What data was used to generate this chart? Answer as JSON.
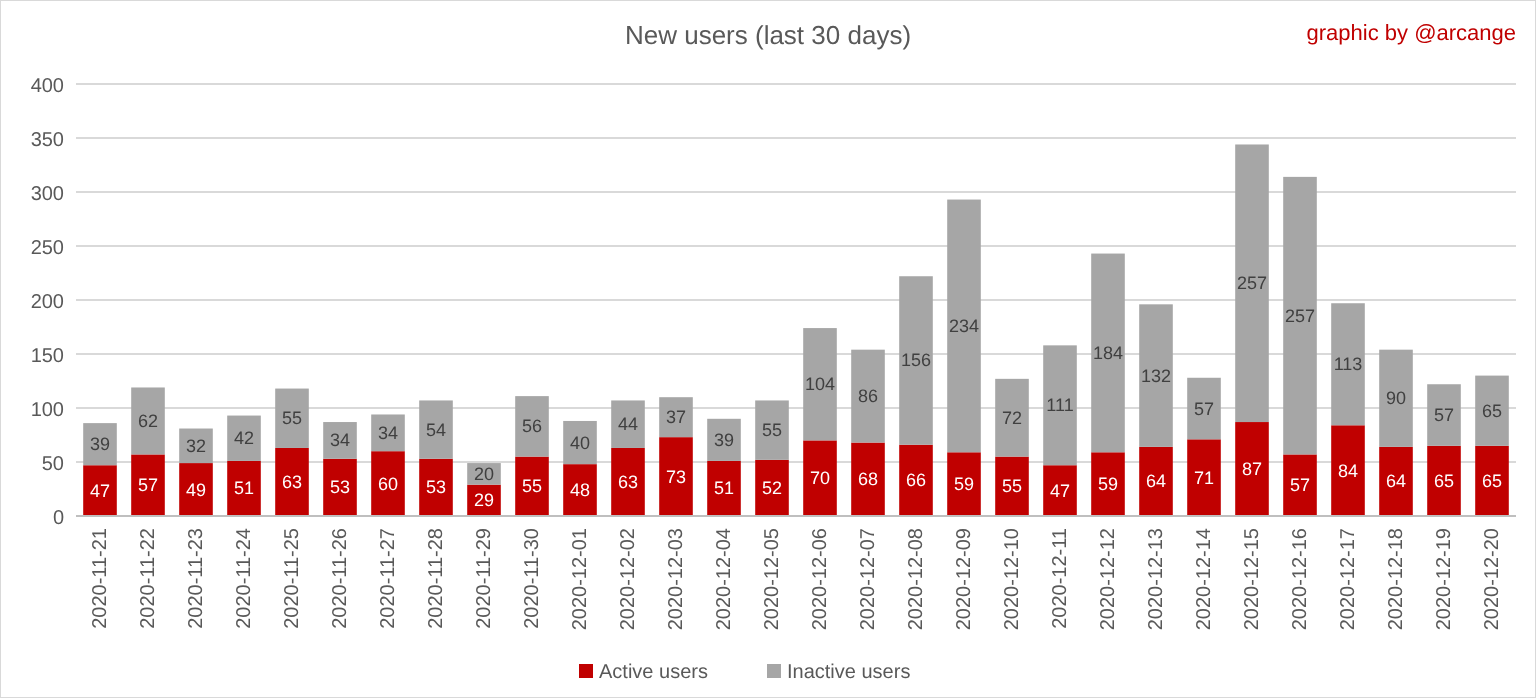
{
  "chart_data": {
    "type": "bar",
    "title": "New users (last 30 days)",
    "annotations": [
      "graphic by @arcange"
    ],
    "stacked": true,
    "data_labels": true,
    "grid": "y",
    "legend": "bottom",
    "categories": [
      "2020-11-21",
      "2020-11-22",
      "2020-11-23",
      "2020-11-24",
      "2020-11-25",
      "2020-11-26",
      "2020-11-27",
      "2020-11-28",
      "2020-11-29",
      "2020-11-30",
      "2020-12-01",
      "2020-12-02",
      "2020-12-03",
      "2020-12-04",
      "2020-12-05",
      "2020-12-06",
      "2020-12-07",
      "2020-12-08",
      "2020-12-09",
      "2020-12-10",
      "2020-12-11",
      "2020-12-12",
      "2020-12-13",
      "2020-12-14",
      "2020-12-15",
      "2020-12-16",
      "2020-12-17",
      "2020-12-18",
      "2020-12-19",
      "2020-12-20"
    ],
    "ylim": [
      0,
      400
    ],
    "yticks": [
      0,
      50,
      100,
      150,
      200,
      250,
      300,
      350,
      400
    ],
    "series": [
      {
        "name": "Active users",
        "color": "#c00000",
        "values": [
          47,
          57,
          49,
          51,
          63,
          53,
          60,
          53,
          29,
          55,
          48,
          63,
          73,
          51,
          52,
          70,
          68,
          66,
          59,
          55,
          47,
          59,
          64,
          71,
          87,
          57,
          84,
          64,
          65,
          65
        ]
      },
      {
        "name": "Inactive users",
        "color": "#a6a6a6",
        "values": [
          39,
          62,
          32,
          42,
          55,
          34,
          34,
          54,
          20,
          56,
          40,
          44,
          37,
          39,
          55,
          104,
          86,
          156,
          234,
          72,
          111,
          184,
          132,
          57,
          257,
          257,
          113,
          90,
          57,
          65
        ]
      }
    ]
  }
}
